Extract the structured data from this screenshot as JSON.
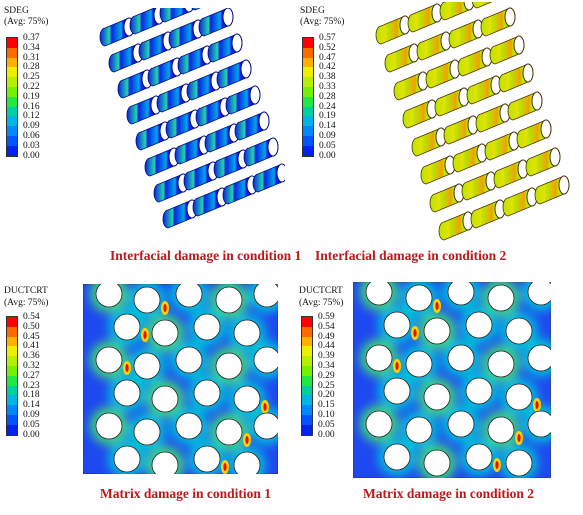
{
  "panels": [
    {
      "legend": {
        "variable": "SDEG",
        "avg": "(Avg: 75%)",
        "ticks": [
          "0.37",
          "0.34",
          "0.31",
          "0.28",
          "0.25",
          "0.22",
          "0.19",
          "0.16",
          "0.12",
          "0.09",
          "0.06",
          "0.03",
          "0.00"
        ]
      },
      "caption": "Interfacial damage in condition 1"
    },
    {
      "legend": {
        "variable": "SDEG",
        "avg": "(Avg: 75%)",
        "ticks": [
          "0.57",
          "0.52",
          "0.47",
          "0.42",
          "0.38",
          "0.33",
          "0.28",
          "0.24",
          "0.19",
          "0.14",
          "0.09",
          "0.05",
          "0.00"
        ]
      },
      "caption": "Interfacial damage in condition 2"
    },
    {
      "legend": {
        "variable": "DUCTCRT",
        "avg": "(Avg: 75%)",
        "ticks": [
          "0.54",
          "0.50",
          "0.45",
          "0.41",
          "0.36",
          "0.32",
          "0.27",
          "0.23",
          "0.18",
          "0.14",
          "0.09",
          "0.05",
          "0.00"
        ]
      },
      "caption": "Matrix damage in condition 1"
    },
    {
      "legend": {
        "variable": "DUCTCRT",
        "avg": "(Avg: 75%)",
        "ticks": [
          "0.59",
          "0.54",
          "0.49",
          "0.44",
          "0.39",
          "0.34",
          "0.29",
          "0.25",
          "0.20",
          "0.15",
          "0.10",
          "0.05",
          "0.00"
        ]
      },
      "caption": "Matrix damage in condition 2"
    }
  ],
  "colormap": [
    "#ff0000",
    "#ff6a00",
    "#ffb000",
    "#eeee00",
    "#b4f000",
    "#74f000",
    "#22e844",
    "#00d0a0",
    "#00b4e4",
    "#0088ff",
    "#0054ff",
    "#0022ee"
  ]
}
